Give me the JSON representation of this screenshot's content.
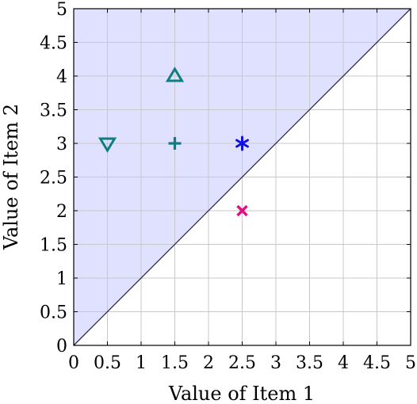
{
  "chart_data": {
    "type": "scatter",
    "xlabel": "Value of Item 1",
    "ylabel": "Value of Item 2",
    "xlim": [
      0,
      5
    ],
    "ylim": [
      0,
      5
    ],
    "xticks": [
      0,
      0.5,
      1,
      1.5,
      2,
      2.5,
      3,
      3.5,
      4,
      4.5,
      5
    ],
    "yticks": [
      0,
      0.5,
      1,
      1.5,
      2,
      2.5,
      3,
      3.5,
      4,
      4.5,
      5
    ],
    "xtick_labels": [
      "0",
      "0.5",
      "1",
      "1.5",
      "2",
      "2.5",
      "3",
      "3.5",
      "4",
      "4.5",
      "5"
    ],
    "ytick_labels": [
      "0",
      "0.5",
      "1",
      "1.5",
      "2",
      "2.5",
      "3",
      "3.5",
      "4",
      "4.5",
      "5"
    ],
    "grid": true,
    "diagonal": {
      "from": [
        0,
        0
      ],
      "to": [
        5,
        5
      ],
      "color": "#2a2a4a"
    },
    "shaded_region": {
      "description": "y > x",
      "color": "#e0e0ff"
    },
    "points": [
      {
        "x": 0.5,
        "y": 3,
        "marker": "triangle-down",
        "color": "#0e7f7f"
      },
      {
        "x": 1.5,
        "y": 4,
        "marker": "triangle-up",
        "color": "#0e7f7f"
      },
      {
        "x": 1.5,
        "y": 3,
        "marker": "plus",
        "color": "#0e7f7f"
      },
      {
        "x": 2.5,
        "y": 3,
        "marker": "asterisk",
        "color": "#1010e0"
      },
      {
        "x": 2.5,
        "y": 2,
        "marker": "x",
        "color": "#e0107f"
      }
    ]
  }
}
